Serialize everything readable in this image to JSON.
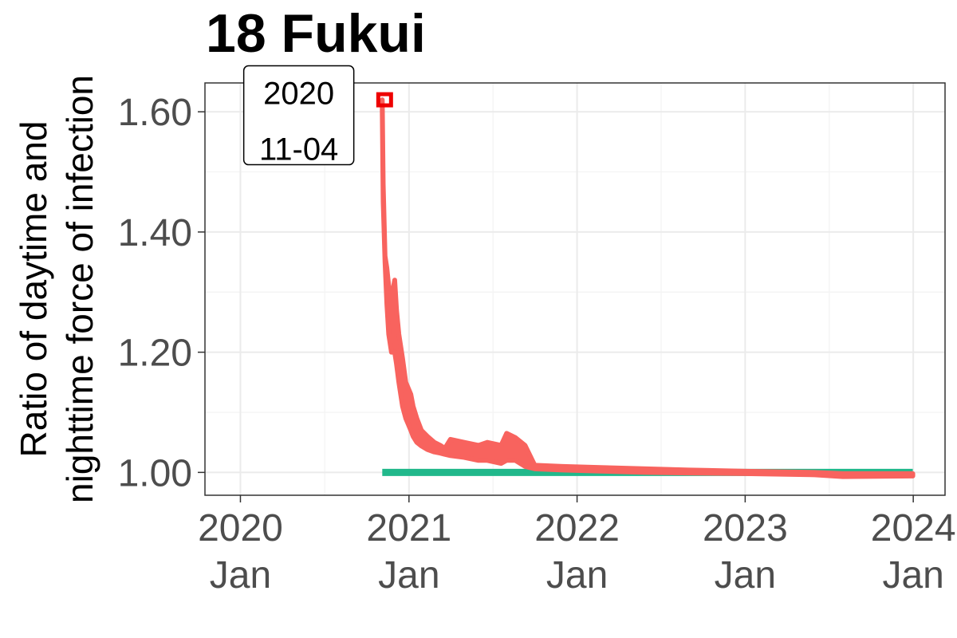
{
  "chart_data": {
    "type": "line",
    "title": "18 Fukui",
    "ylabel_lines": [
      "Ratio of daytime and",
      "nighttime force of infection"
    ],
    "x_ticks": [
      {
        "date": "2020-01-01",
        "year": "2020",
        "month": "Jan"
      },
      {
        "date": "2021-01-01",
        "year": "2021",
        "month": "Jan"
      },
      {
        "date": "2022-01-01",
        "year": "2022",
        "month": "Jan"
      },
      {
        "date": "2023-01-01",
        "year": "2023",
        "month": "Jan"
      },
      {
        "date": "2024-01-01",
        "year": "2024",
        "month": "Jan"
      }
    ],
    "y_ticks": [
      "1.00",
      "1.20",
      "1.40",
      "1.60"
    ],
    "xlim": [
      "2019-10-16",
      "2024-03-10"
    ],
    "ylim": [
      0.962,
      1.648
    ],
    "grid": true,
    "annotation": {
      "date": "2020-11-04",
      "value": 1.62,
      "lines": [
        "2020",
        "11-04"
      ],
      "label_date": "2020-05-05",
      "label_value": 1.565
    },
    "highlight_marker": {
      "date": "2020-11-04",
      "value": 1.62,
      "color": "#ee0000"
    },
    "series": [
      {
        "color": "#f8635e",
        "upper": [
          [
            "2020-11-04",
            1.62
          ],
          [
            "2020-11-06",
            1.48
          ],
          [
            "2020-11-10",
            1.36
          ],
          [
            "2020-11-14",
            1.34
          ],
          [
            "2020-11-18",
            1.31
          ],
          [
            "2020-11-24",
            1.29
          ],
          [
            "2020-12-01",
            1.32
          ],
          [
            "2020-12-05",
            1.27
          ],
          [
            "2020-12-10",
            1.23
          ],
          [
            "2020-12-18",
            1.19
          ],
          [
            "2020-12-25",
            1.15
          ],
          [
            "2021-01-05",
            1.13
          ],
          [
            "2021-01-10",
            1.11
          ],
          [
            "2021-01-18",
            1.09
          ],
          [
            "2021-01-28",
            1.07
          ],
          [
            "2021-02-10",
            1.06
          ],
          [
            "2021-02-25",
            1.05
          ],
          [
            "2021-03-10",
            1.045
          ],
          [
            "2021-03-20",
            1.04
          ],
          [
            "2021-04-01",
            1.055
          ],
          [
            "2021-05-01",
            1.05
          ],
          [
            "2021-06-01",
            1.045
          ],
          [
            "2021-06-20",
            1.05
          ],
          [
            "2021-07-20",
            1.045
          ],
          [
            "2021-08-01",
            1.065
          ],
          [
            "2021-08-20",
            1.058
          ],
          [
            "2021-09-10",
            1.045
          ],
          [
            "2021-10-01",
            1.012
          ],
          [
            "2021-12-01",
            1.01
          ],
          [
            "2022-03-01",
            1.008
          ],
          [
            "2022-06-01",
            1.006
          ],
          [
            "2022-09-01",
            1.004
          ],
          [
            "2023-01-01",
            1.002
          ],
          [
            "2023-06-01",
            1.0
          ],
          [
            "2023-08-01",
            0.998
          ],
          [
            "2023-12-31",
            0.998
          ]
        ],
        "lower": [
          [
            "2023-12-31",
            0.994
          ],
          [
            "2023-08-01",
            0.993
          ],
          [
            "2023-06-01",
            0.996
          ],
          [
            "2023-01-01",
            0.998
          ],
          [
            "2022-09-01",
            0.999
          ],
          [
            "2022-06-01",
            1.0
          ],
          [
            "2022-03-01",
            1.002
          ],
          [
            "2021-12-01",
            1.004
          ],
          [
            "2021-10-01",
            1.006
          ],
          [
            "2021-09-10",
            1.01
          ],
          [
            "2021-08-20",
            1.02
          ],
          [
            "2021-08-01",
            1.02
          ],
          [
            "2021-07-20",
            1.015
          ],
          [
            "2021-06-20",
            1.02
          ],
          [
            "2021-06-01",
            1.02
          ],
          [
            "2021-05-01",
            1.025
          ],
          [
            "2021-04-01",
            1.028
          ],
          [
            "2021-03-20",
            1.03
          ],
          [
            "2021-03-10",
            1.032
          ],
          [
            "2021-02-25",
            1.034
          ],
          [
            "2021-02-10",
            1.038
          ],
          [
            "2021-01-28",
            1.044
          ],
          [
            "2021-01-18",
            1.05
          ],
          [
            "2021-01-10",
            1.06
          ],
          [
            "2021-01-05",
            1.07
          ],
          [
            "2020-12-25",
            1.09
          ],
          [
            "2020-12-18",
            1.11
          ],
          [
            "2020-12-10",
            1.15
          ],
          [
            "2020-12-05",
            1.18
          ],
          [
            "2020-12-01",
            1.2
          ],
          [
            "2020-11-24",
            1.2
          ],
          [
            "2020-11-18",
            1.23
          ],
          [
            "2020-11-14",
            1.28
          ],
          [
            "2020-11-10",
            1.35
          ],
          [
            "2020-11-06",
            1.45
          ],
          [
            "2020-11-04",
            1.6
          ]
        ]
      },
      {
        "color": "#21b88b",
        "points": [
          [
            "2020-11-04",
            1.0
          ],
          [
            "2023-12-31",
            1.0
          ]
        ]
      }
    ]
  }
}
